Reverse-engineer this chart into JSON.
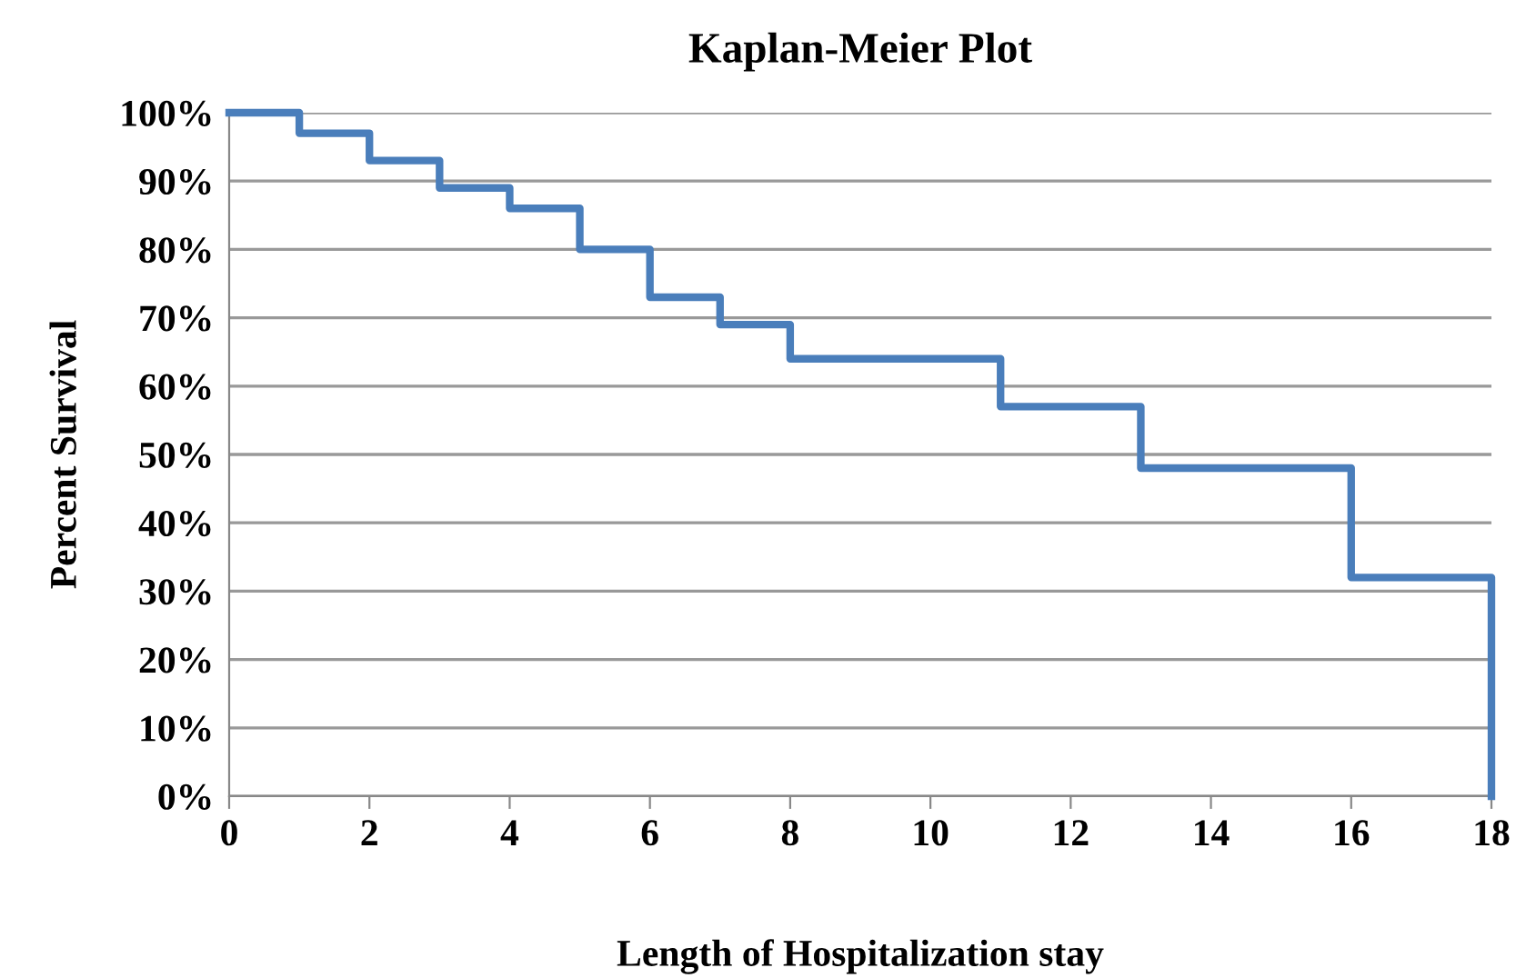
{
  "chart_data": {
    "type": "step",
    "title": "Kaplan-Meier Plot",
    "xlabel": "Length of Hospitalization stay",
    "ylabel": "Percent Survival",
    "x": [
      0,
      1,
      2,
      3,
      4,
      5,
      6,
      7,
      8,
      11,
      13,
      16,
      18
    ],
    "series": [
      {
        "color": "#4a7ebb",
        "values": [
          100,
          97,
          93,
          89,
          86,
          80,
          73,
          69,
          64,
          57,
          48,
          32,
          0
        ]
      }
    ],
    "xlim": [
      0,
      18
    ],
    "xticks": [
      0,
      2,
      4,
      6,
      8,
      10,
      12,
      14,
      16,
      18
    ],
    "ylim": [
      0,
      100
    ],
    "yticks": [
      {
        "value": 0,
        "label": "0%"
      },
      {
        "value": 10,
        "label": "10%"
      },
      {
        "value": 20,
        "label": "20%"
      },
      {
        "value": 30,
        "label": "30%"
      },
      {
        "value": 40,
        "label": "40%"
      },
      {
        "value": 50,
        "label": "50%"
      },
      {
        "value": 60,
        "label": "60%"
      },
      {
        "value": 70,
        "label": "70%"
      },
      {
        "value": 80,
        "label": "80%"
      },
      {
        "value": 90,
        "label": "90%"
      },
      {
        "value": 100,
        "label": "100%"
      }
    ],
    "grid": "y",
    "legend": false,
    "marker": "none",
    "line_style": "solid"
  }
}
